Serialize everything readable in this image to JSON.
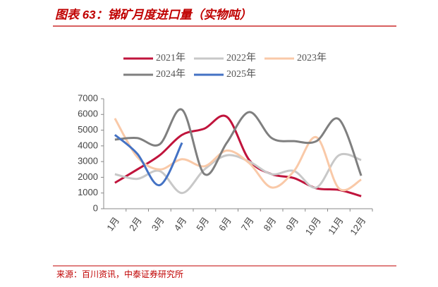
{
  "chart_data": {
    "type": "line",
    "title": "图表 63：锑矿月度进口量（实物吨）",
    "source": "来源：百川资讯，中泰证券研究所",
    "categories": [
      "1月",
      "2月",
      "3月",
      "4月",
      "5月",
      "6月",
      "7月",
      "8月",
      "9月",
      "10月",
      "11月",
      "12月"
    ],
    "series": [
      {
        "name": "2021年",
        "color": "#c0143c",
        "values": [
          1650,
          2500,
          3400,
          4700,
          5100,
          5850,
          3100,
          2200,
          1950,
          1300,
          1200,
          800
        ]
      },
      {
        "name": "2022年",
        "color": "#c8c8c8",
        "values": [
          2200,
          1900,
          2400,
          1000,
          2500,
          3400,
          3000,
          2200,
          2400,
          1350,
          3400,
          3100
        ]
      },
      {
        "name": "2023年",
        "color": "#f9c9a8",
        "values": [
          5750,
          3300,
          2500,
          3150,
          2700,
          3700,
          2900,
          1350,
          2400,
          4550,
          1300,
          1850
        ]
      },
      {
        "name": "2024年",
        "color": "#7f7f7f",
        "values": [
          4400,
          4500,
          4100,
          6300,
          2200,
          4200,
          6150,
          4500,
          4300,
          4300,
          5700,
          2100
        ]
      },
      {
        "name": "2025年",
        "color": "#4472c4",
        "values": [
          4700,
          3500,
          1500,
          4200,
          null,
          null,
          null,
          null,
          null,
          null,
          null,
          null
        ]
      }
    ],
    "ylim": [
      0,
      7000
    ],
    "yticks": [
      0,
      1000,
      2000,
      3000,
      4000,
      5000,
      6000,
      7000
    ],
    "smooth": true
  }
}
